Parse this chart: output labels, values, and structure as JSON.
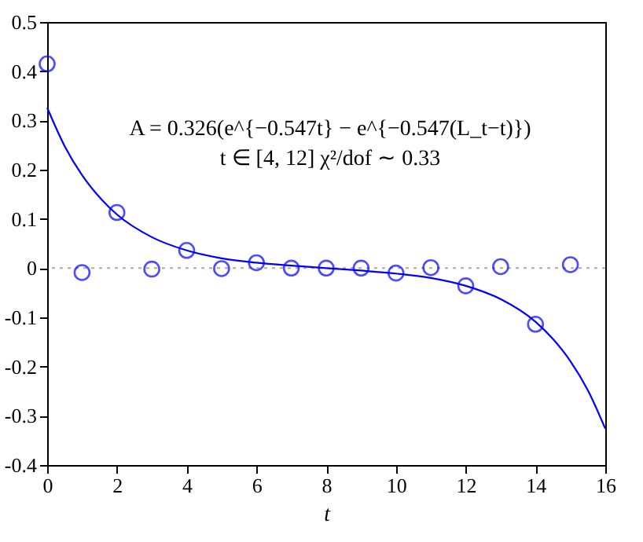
{
  "chart_data": {
    "type": "scatter",
    "xlabel": "t",
    "xlim": [
      0,
      16
    ],
    "xticks": [
      0,
      2,
      4,
      6,
      8,
      10,
      12,
      14,
      16
    ],
    "ylim": [
      -0.4,
      0.5
    ],
    "yticks": [
      -0.4,
      -0.3,
      -0.2,
      -0.1,
      0,
      0.1,
      0.2,
      0.3,
      0.4,
      0.5
    ],
    "grid": false,
    "annotations": [
      "A = 0.326(e^{−0.547t} − e^{−0.547(L_t−t)})",
      "t ∈ [4, 12]  χ²/dof ∼ 0.33"
    ],
    "ref_lines": [
      {
        "axis": "y",
        "value": 0,
        "color": "#aaaaaa",
        "line_style": "dotted"
      }
    ],
    "series": [
      {
        "color": "#0000ff",
        "marker": "circle",
        "x": [
          0,
          1,
          2,
          3,
          4,
          5,
          6,
          7,
          8,
          9,
          10,
          11,
          12,
          13,
          14,
          15
        ],
        "values": [
          0.415,
          -0.009,
          0.113,
          -0.002,
          0.036,
          -0.001,
          0.011,
          0.0,
          0.0,
          0.0,
          -0.01,
          0.001,
          -0.036,
          0.003,
          -0.114,
          0.007
        ]
      },
      {
        "type": "line",
        "color": "#0000ff",
        "line_style": "solid",
        "x": [
          0,
          0.5,
          1,
          1.5,
          2,
          3,
          4,
          5,
          6,
          7,
          8,
          9,
          10,
          11,
          12,
          13,
          14,
          14.5,
          15,
          15.5,
          16
        ],
        "values": [
          0.326,
          0.248,
          0.189,
          0.144,
          0.109,
          0.063,
          0.036,
          0.02,
          0.011,
          0.005,
          0,
          -0.005,
          -0.011,
          -0.02,
          -0.036,
          -0.063,
          -0.109,
          -0.144,
          -0.189,
          -0.248,
          -0.326
        ]
      }
    ]
  }
}
